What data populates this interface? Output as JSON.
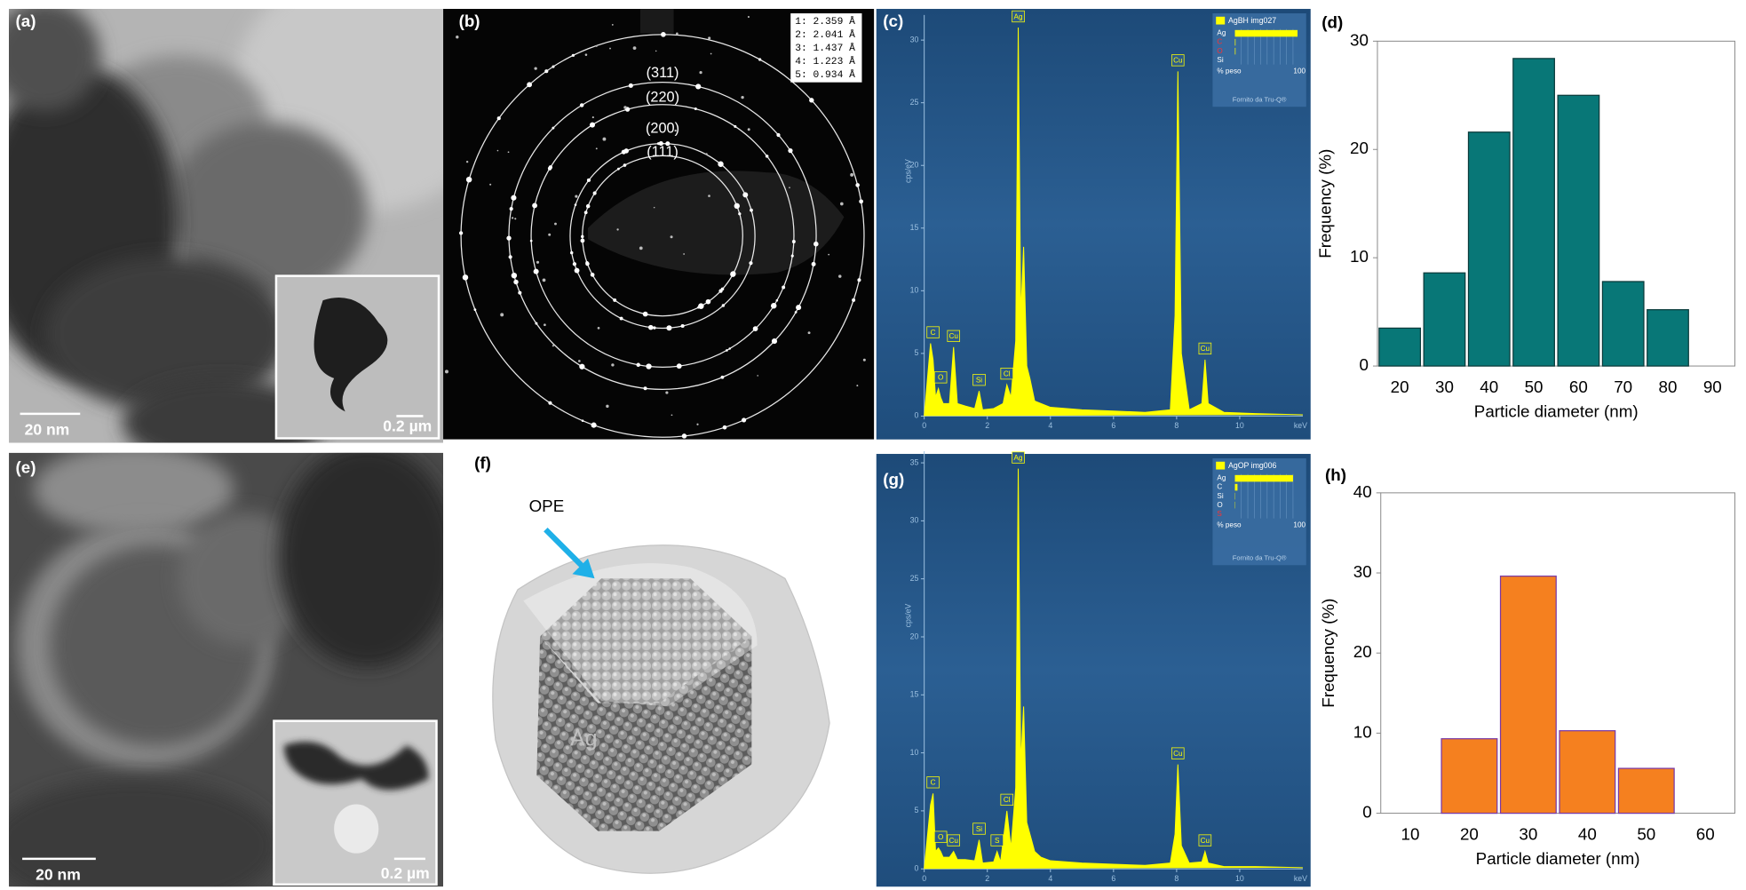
{
  "panels": {
    "a": {
      "label": "(a)",
      "scale_bar": "20 nm",
      "inset_scale_bar": "0.2 µm"
    },
    "b": {
      "label": "(b)",
      "rings": [
        "(311)",
        "(220)",
        "(200)",
        "(111)"
      ],
      "d_spacings": [
        "1: 2.359 Å",
        "2: 2.041 Å",
        "3: 1.437 Å",
        "4: 1.223 Å",
        "5: 0.934 Å"
      ]
    },
    "e": {
      "label": "(e)",
      "scale_bar": "20 nm",
      "inset_scale_bar": "0.2 µm"
    },
    "f": {
      "label": "(f)",
      "shell_label": "OPE",
      "core_label": "Ag"
    }
  },
  "chart_data": [
    {
      "type": "line",
      "panel_label": "(c)",
      "xlabel": "keV",
      "ylabel": "cps/eV",
      "xlim": [
        0,
        12
      ],
      "xticks": [
        0,
        2,
        4,
        6,
        8,
        10
      ],
      "ylim": [
        0,
        32
      ],
      "yticks": [
        0,
        5,
        10,
        15,
        20,
        25,
        30
      ],
      "x": [
        0,
        0.2,
        0.28,
        0.36,
        0.45,
        0.52,
        0.6,
        0.8,
        0.93,
        1.05,
        1.3,
        1.6,
        1.74,
        1.85,
        2.2,
        2.5,
        2.62,
        2.75,
        2.9,
        2.98,
        3.06,
        3.15,
        3.25,
        3.35,
        3.5,
        3.7,
        4.0,
        5,
        6,
        7,
        7.8,
        7.95,
        8.04,
        8.15,
        8.4,
        8.8,
        8.9,
        9.0,
        9.5,
        10.5,
        12
      ],
      "series": [
        {
          "name": "AgBH img027",
          "color": "#ffff00",
          "values": [
            0,
            5.8,
            4.5,
            1.5,
            2.2,
            1.5,
            1,
            1,
            5.5,
            1,
            0.8,
            0.6,
            2,
            0.5,
            0.6,
            1,
            2.5,
            1.5,
            6,
            31,
            8,
            13.5,
            4,
            3,
            1.2,
            1,
            0.7,
            0.5,
            0.4,
            0.3,
            0.5,
            8,
            27.5,
            5,
            0.5,
            1,
            4.5,
            1,
            0.3,
            0.2,
            0.1
          ]
        }
      ],
      "annotations": [
        {
          "label": "C",
          "x": 0.28
        },
        {
          "label": "O",
          "x": 0.52
        },
        {
          "label": "Cu",
          "x": 0.93
        },
        {
          "label": "Si",
          "x": 1.74
        },
        {
          "label": "Cl",
          "x": 2.62
        },
        {
          "label": "Ag",
          "x": 2.98
        },
        {
          "label": "Cu",
          "x": 8.04
        },
        {
          "label": "Cu",
          "x": 8.9
        }
      ],
      "composition": [
        {
          "label": "Ag",
          "value": 97,
          "color": "#ffffff"
        },
        {
          "label": "C",
          "value": 1,
          "color": "#ff3030"
        },
        {
          "label": "O",
          "value": 1,
          "color": "#ff3030"
        },
        {
          "label": "Si",
          "value": 0,
          "color": "#ffffff"
        }
      ],
      "composition_label": "% peso",
      "composition_max": 100,
      "credit": "Fornito da Tru-Q®"
    },
    {
      "type": "bar",
      "panel_label": "(d)",
      "xlabel": "Particle diameter (nm)",
      "ylabel": "Frequency (%)",
      "categories": [
        20,
        30,
        40,
        50,
        60,
        70,
        80,
        90
      ],
      "values": [
        3.5,
        8.6,
        21.6,
        28.4,
        25.0,
        7.8,
        5.2,
        0
      ],
      "color": "#087777",
      "edgecolor": "#0b3b3b",
      "ylim": [
        0,
        30
      ],
      "yticks": [
        0,
        10,
        20,
        30
      ]
    },
    {
      "type": "line",
      "panel_label": "(g)",
      "xlabel": "keV",
      "ylabel": "cps/eV",
      "xlim": [
        0,
        12
      ],
      "xticks": [
        0,
        2,
        4,
        6,
        8,
        10
      ],
      "ylim": [
        0,
        36
      ],
      "yticks": [
        0,
        5,
        10,
        15,
        20,
        25,
        30,
        35
      ],
      "x": [
        0,
        0.2,
        0.28,
        0.36,
        0.45,
        0.52,
        0.6,
        0.8,
        0.93,
        1.05,
        1.3,
        1.6,
        1.74,
        1.85,
        2.2,
        2.31,
        2.42,
        2.62,
        2.75,
        2.9,
        2.98,
        3.06,
        3.15,
        3.25,
        3.35,
        3.5,
        3.7,
        4.0,
        5,
        6,
        7,
        7.8,
        7.95,
        8.04,
        8.15,
        8.4,
        8.8,
        8.9,
        9.0,
        9.5,
        10.5,
        12
      ],
      "series": [
        {
          "name": "AgOP img006",
          "color": "#ffff00",
          "values": [
            0,
            5.5,
            6.5,
            1.5,
            1.8,
            1.5,
            1,
            1,
            1.5,
            0.8,
            0.8,
            0.7,
            2.5,
            0.5,
            0.6,
            1.5,
            0.6,
            5,
            1.8,
            7,
            34.5,
            9,
            14,
            4,
            3,
            1.5,
            1,
            0.7,
            0.5,
            0.4,
            0.3,
            0.5,
            3,
            9,
            2,
            0.5,
            0.6,
            1.5,
            0.5,
            0.2,
            0.2,
            0.1
          ]
        }
      ],
      "annotations": [
        {
          "label": "C",
          "x": 0.28
        },
        {
          "label": "O",
          "x": 0.52
        },
        {
          "label": "Cu",
          "x": 0.93
        },
        {
          "label": "Si",
          "x": 1.74
        },
        {
          "label": "S",
          "x": 2.31
        },
        {
          "label": "Cl",
          "x": 2.62
        },
        {
          "label": "Ag",
          "x": 2.98
        },
        {
          "label": "Cu",
          "x": 8.04
        },
        {
          "label": "Cu",
          "x": 8.9
        }
      ],
      "composition": [
        {
          "label": "Ag",
          "value": 90,
          "color": "#ffffff"
        },
        {
          "label": "C",
          "value": 4,
          "color": "#ffffff"
        },
        {
          "label": "Si",
          "value": 0.5,
          "color": "#ffffff"
        },
        {
          "label": "O",
          "value": 0.5,
          "color": "#ffffff"
        },
        {
          "label": "S",
          "value": 0,
          "color": "#ff3030"
        }
      ],
      "composition_label": "% peso",
      "composition_max": 100,
      "credit": "Fornito da Tru-Q®"
    },
    {
      "type": "bar",
      "panel_label": "(h)",
      "xlabel": "Particle diameter (nm)",
      "ylabel": "Frequency (%)",
      "categories": [
        10,
        20,
        30,
        40,
        50,
        60
      ],
      "values": [
        0,
        9.3,
        29.6,
        10.3,
        5.6,
        0
      ],
      "color": "#f5801f",
      "edgecolor": "#7a3aa6",
      "ylim": [
        0,
        40
      ],
      "yticks": [
        0,
        10,
        20,
        30,
        40
      ]
    }
  ]
}
